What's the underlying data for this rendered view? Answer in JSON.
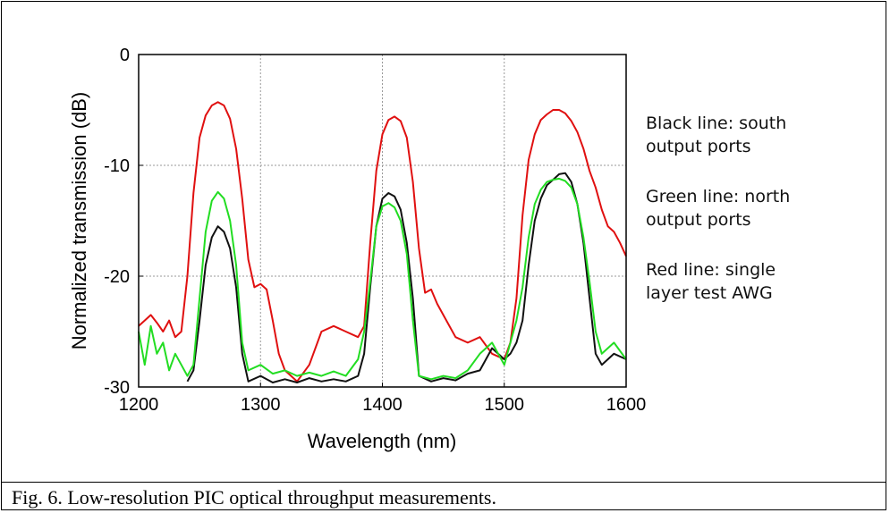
{
  "chart_data": {
    "type": "line",
    "title": "",
    "xlabel": "Wavelength (nm)",
    "ylabel": "Normalized transmission (dB)",
    "xlim": [
      1200,
      1600
    ],
    "ylim": [
      -30,
      0
    ],
    "xticks": [
      1200,
      1300,
      1400,
      1500,
      1600
    ],
    "yticks": [
      0,
      -10,
      -20,
      -30
    ],
    "xtick_labels": [
      "1200",
      "1300",
      "1400",
      "1500",
      "1600"
    ],
    "ytick_labels": [
      "0",
      "-10",
      "-20",
      "-30"
    ],
    "grid": true,
    "legend_placement": "right",
    "series": [
      {
        "color": "#e01010",
        "x": [
          1200,
          1205,
          1210,
          1215,
          1220,
          1225,
          1230,
          1235,
          1240,
          1245,
          1250,
          1255,
          1260,
          1265,
          1270,
          1275,
          1280,
          1285,
          1290,
          1295,
          1300,
          1305,
          1310,
          1315,
          1320,
          1330,
          1340,
          1350,
          1360,
          1370,
          1380,
          1385,
          1390,
          1395,
          1400,
          1405,
          1410,
          1415,
          1420,
          1425,
          1430,
          1435,
          1440,
          1445,
          1450,
          1460,
          1470,
          1480,
          1490,
          1500,
          1505,
          1510,
          1515,
          1520,
          1525,
          1530,
          1535,
          1540,
          1545,
          1550,
          1555,
          1560,
          1565,
          1570,
          1575,
          1580,
          1585,
          1590,
          1595,
          1600
        ],
        "y": [
          -24.5,
          -24,
          -23.5,
          -24.2,
          -25,
          -24,
          -25.5,
          -25,
          -20,
          -12.5,
          -7.5,
          -5.5,
          -4.6,
          -4.3,
          -4.6,
          -5.8,
          -8.5,
          -13,
          -18.5,
          -21,
          -20.7,
          -21.2,
          -24,
          -27,
          -28.5,
          -29.5,
          -28,
          -25,
          -24.5,
          -25,
          -25.5,
          -24.5,
          -17,
          -10.5,
          -7.2,
          -5.9,
          -5.6,
          -6,
          -7.5,
          -11.5,
          -17.5,
          -21.5,
          -21.2,
          -22.5,
          -23.5,
          -25.5,
          -26,
          -25.5,
          -27,
          -27.5,
          -26,
          -22,
          -14.5,
          -9.5,
          -7.2,
          -5.9,
          -5.4,
          -5,
          -5,
          -5.3,
          -6,
          -7,
          -8.5,
          -10.5,
          -12,
          -14,
          -15.5,
          -16,
          -17,
          -18.2
        ]
      },
      {
        "color": "#111111",
        "x": [
          1240,
          1245,
          1250,
          1255,
          1260,
          1265,
          1270,
          1275,
          1280,
          1285,
          1290,
          1300,
          1310,
          1320,
          1330,
          1340,
          1350,
          1360,
          1370,
          1380,
          1385,
          1390,
          1395,
          1400,
          1405,
          1410,
          1415,
          1420,
          1425,
          1430,
          1440,
          1450,
          1460,
          1470,
          1480,
          1490,
          1500,
          1505,
          1510,
          1515,
          1520,
          1525,
          1530,
          1535,
          1540,
          1545,
          1550,
          1555,
          1560,
          1565,
          1570,
          1575,
          1580,
          1590,
          1600
        ],
        "y": [
          -29.5,
          -28.5,
          -24,
          -19,
          -16.5,
          -15.5,
          -16,
          -17.5,
          -21,
          -27,
          -29.5,
          -29,
          -29.6,
          -29.3,
          -29.6,
          -29.2,
          -29.5,
          -29.3,
          -29.5,
          -29,
          -27,
          -21,
          -15.5,
          -13,
          -12.5,
          -12.8,
          -14,
          -17,
          -22,
          -29,
          -29.5,
          -29.2,
          -29.4,
          -28.8,
          -28.5,
          -26.5,
          -27.5,
          -27,
          -26,
          -24,
          -19,
          -15,
          -13,
          -11.8,
          -11.3,
          -10.8,
          -10.7,
          -11.5,
          -13.5,
          -17,
          -22,
          -27,
          -28,
          -27,
          -27.5
        ]
      },
      {
        "color": "#22dd22",
        "x": [
          1200,
          1205,
          1210,
          1215,
          1220,
          1225,
          1230,
          1235,
          1240,
          1245,
          1250,
          1255,
          1260,
          1265,
          1270,
          1275,
          1280,
          1285,
          1290,
          1300,
          1310,
          1320,
          1330,
          1340,
          1350,
          1360,
          1370,
          1380,
          1385,
          1390,
          1395,
          1400,
          1405,
          1410,
          1415,
          1420,
          1425,
          1430,
          1440,
          1450,
          1460,
          1470,
          1480,
          1490,
          1500,
          1505,
          1510,
          1515,
          1520,
          1525,
          1530,
          1535,
          1540,
          1545,
          1550,
          1555,
          1560,
          1565,
          1570,
          1575,
          1580,
          1590,
          1600
        ],
        "y": [
          -25,
          -28,
          -24.5,
          -27,
          -26,
          -28.5,
          -27,
          -28,
          -29,
          -28,
          -22,
          -16,
          -13.2,
          -12.4,
          -13,
          -15,
          -19,
          -26,
          -28.5,
          -28,
          -28.8,
          -28.5,
          -29,
          -28.7,
          -29,
          -28.6,
          -29,
          -27.5,
          -25,
          -20.5,
          -15.5,
          -13.7,
          -13.4,
          -13.8,
          -15,
          -18,
          -24,
          -29,
          -29.3,
          -29,
          -29.2,
          -28.5,
          -27,
          -26,
          -28,
          -26,
          -24,
          -21,
          -16.5,
          -13.5,
          -12.2,
          -11.5,
          -11.3,
          -11.2,
          -11.4,
          -12,
          -13.5,
          -16.5,
          -20.5,
          -25,
          -27,
          -26,
          -27.5
        ]
      }
    ],
    "annotations": [
      "Black line: south output ports",
      "Green line: north output ports",
      "Red line: single layer test AWG"
    ]
  },
  "legend": {
    "black_line1": "Black line: south",
    "black_line2": "output ports",
    "green_line1": "Green line: north",
    "green_line2": "output ports",
    "red_line1": "Red line: single",
    "red_line2": "layer test AWG"
  },
  "caption": "Fig. 6. Low-resolution PIC optical throughput measurements."
}
